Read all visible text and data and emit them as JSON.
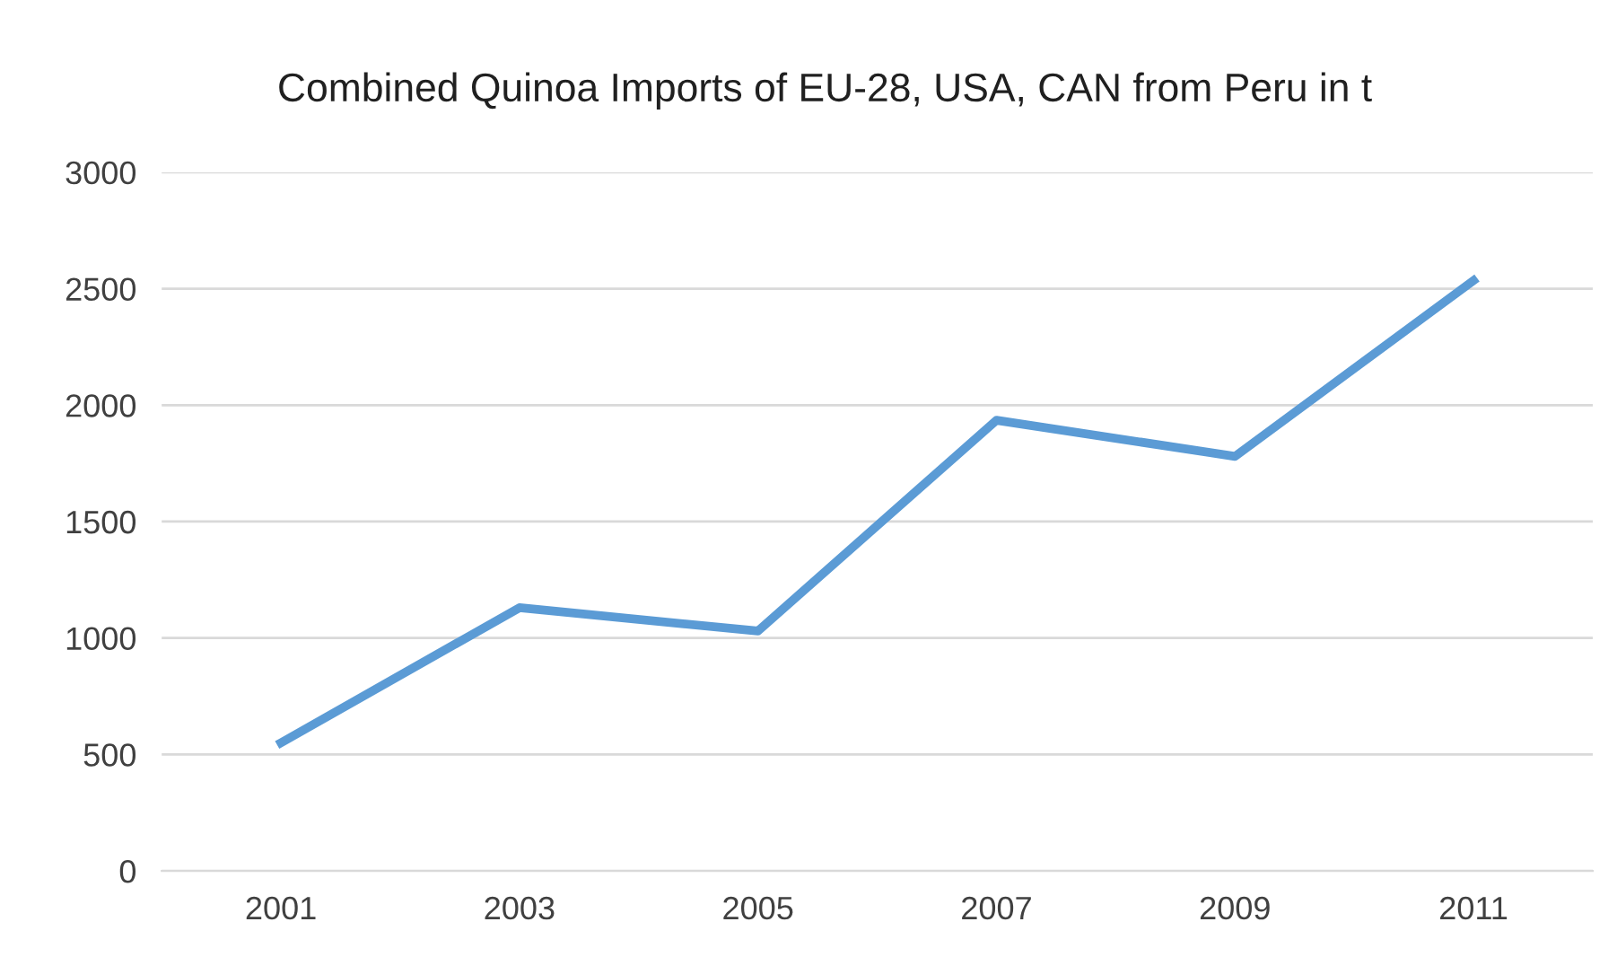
{
  "chart_data": {
    "type": "line",
    "title": "Combined Quinoa Imports of EU-28, USA, CAN from Peru in t",
    "categories": [
      "2001",
      "2003",
      "2005",
      "2007",
      "2009",
      "2011"
    ],
    "series": [
      {
        "color": "#5b9bd5",
        "values": [
          550,
          1130,
          1030,
          1935,
          1780,
          2535
        ]
      }
    ],
    "ylim": [
      0,
      3000
    ],
    "yticks": [
      0,
      500,
      1000,
      1500,
      2000,
      2500,
      3000
    ],
    "grid": "y",
    "legend": false,
    "marker": "none",
    "line_style": "solid"
  }
}
